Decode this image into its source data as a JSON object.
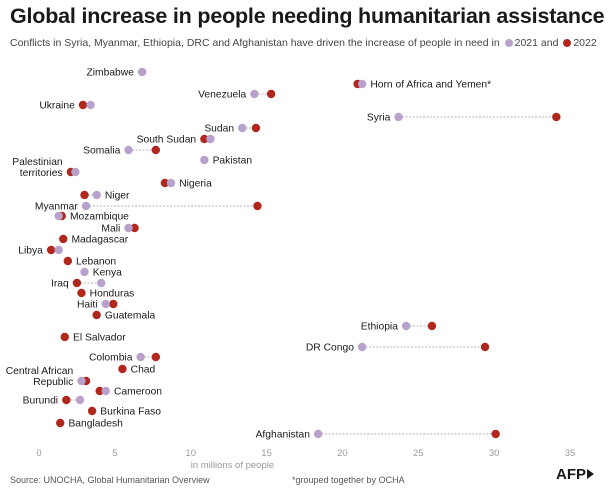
{
  "header": {
    "title": "Global increase in people needing humanitarian assistance",
    "subtitle_text": "Conflicts in Syria, Myanmar, Ethiopia, DRC and Afghanistan have driven the increase of people in need in",
    "legend_2021": "2021 and",
    "legend_2022": "2022"
  },
  "footer": {
    "source": "Source: UNOCHA, Global Humanitarian Overview",
    "footnote": "*grouped together by OCHA",
    "logo_text": "AFP"
  },
  "colors": {
    "y2021": "#b8a2cc",
    "y2022": "#b0281d",
    "connector": "#999999",
    "text": "#1a1a1a",
    "axis_text": "#9a9a9a"
  },
  "chart_data": {
    "type": "dumbbell",
    "xlabel": "in millions of people",
    "xlim": [
      0,
      35
    ],
    "xticks": [
      0,
      5,
      10,
      15,
      20,
      25,
      30,
      35
    ],
    "grid": false,
    "series": [
      {
        "name": "2021"
      },
      {
        "name": "2022"
      }
    ],
    "rows": [
      {
        "label": "Zimbabwe",
        "v2021": 6.8,
        "v2022": null,
        "label_side": "left"
      },
      {
        "label": "Venezuela",
        "v2021": 14.2,
        "v2022": 15.3,
        "label_side": "left"
      },
      {
        "label": "Horn of Africa and Yemen*",
        "v2021": 21.3,
        "v2022": 21.0,
        "label_side": "right"
      },
      {
        "label": "Ukraine",
        "v2021": 3.4,
        "v2022": 2.9,
        "label_side": "left"
      },
      {
        "label": "Syria",
        "v2021": 23.7,
        "v2022": 34.1,
        "label_side": "left"
      },
      {
        "label": "Sudan",
        "v2021": 13.4,
        "v2022": 14.3,
        "label_side": "left"
      },
      {
        "label": "South Sudan",
        "v2021": 11.3,
        "v2022": 10.9,
        "label_side": "left"
      },
      {
        "label": "Somalia",
        "v2021": 5.9,
        "v2022": 7.7,
        "label_side": "left"
      },
      {
        "label": "Pakistan",
        "v2021": 10.9,
        "v2022": null,
        "label_side": "right"
      },
      {
        "label": "Palestinian territories",
        "v2021": 2.4,
        "v2022": 2.1,
        "label_side": "left"
      },
      {
        "label": "Nigeria",
        "v2021": 8.7,
        "v2022": 8.3,
        "label_side": "right"
      },
      {
        "label": "Niger",
        "v2021": 3.8,
        "v2022": 3.0,
        "label_side": "right"
      },
      {
        "label": "Myanmar",
        "v2021": 3.1,
        "v2022": 14.4,
        "label_side": "left"
      },
      {
        "label": "Mozambique",
        "v2021": 1.3,
        "v2022": 1.5,
        "label_side": "right"
      },
      {
        "label": "Mali",
        "v2021": 5.9,
        "v2022": 6.3,
        "label_side": "left"
      },
      {
        "label": "Madagascar",
        "v2021": null,
        "v2022": 1.6,
        "label_side": "right"
      },
      {
        "label": "Libya",
        "v2021": 1.3,
        "v2022": 0.8,
        "label_side": "left"
      },
      {
        "label": "Lebanon",
        "v2021": null,
        "v2022": 1.9,
        "label_side": "right"
      },
      {
        "label": "Kenya",
        "v2021": 3.0,
        "v2022": null,
        "label_side": "right"
      },
      {
        "label": "Iraq",
        "v2021": 4.1,
        "v2022": 2.5,
        "label_side": "left"
      },
      {
        "label": "Honduras",
        "v2021": null,
        "v2022": 2.8,
        "label_side": "right"
      },
      {
        "label": "Haiti",
        "v2021": 4.4,
        "v2022": 4.9,
        "label_side": "left"
      },
      {
        "label": "Guatemala",
        "v2021": null,
        "v2022": 3.8,
        "label_side": "right"
      },
      {
        "label": "Ethiopia",
        "v2021": 24.2,
        "v2022": 25.9,
        "label_side": "left"
      },
      {
        "label": "El Salvador",
        "v2021": null,
        "v2022": 1.7,
        "label_side": "right"
      },
      {
        "label": "DR Congo",
        "v2021": 21.3,
        "v2022": 29.4,
        "label_side": "left"
      },
      {
        "label": "Colombia",
        "v2021": 6.7,
        "v2022": 7.7,
        "label_side": "left"
      },
      {
        "label": "Chad",
        "v2021": null,
        "v2022": 5.5,
        "label_side": "right"
      },
      {
        "label": "Central African Republic",
        "v2021": 2.8,
        "v2022": 3.1,
        "label_side": "left"
      },
      {
        "label": "Cameroon",
        "v2021": 4.4,
        "v2022": 4.0,
        "label_side": "right"
      },
      {
        "label": "Burundi",
        "v2021": 2.7,
        "v2022": 1.8,
        "label_side": "left"
      },
      {
        "label": "Burkina Faso",
        "v2021": null,
        "v2022": 3.5,
        "label_side": "right"
      },
      {
        "label": "Bangladesh",
        "v2021": null,
        "v2022": 1.4,
        "label_side": "right"
      },
      {
        "label": "Afghanistan",
        "v2021": 18.4,
        "v2022": 30.1,
        "label_side": "left"
      }
    ]
  }
}
